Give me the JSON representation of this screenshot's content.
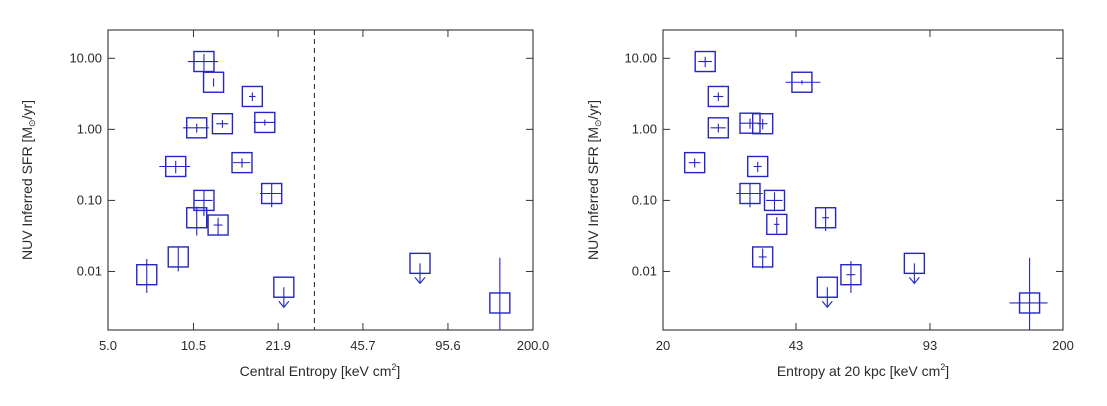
{
  "chart_data": [
    {
      "type": "scatter",
      "xscale": "log",
      "yscale": "log",
      "xlim": [
        5.0,
        200.0
      ],
      "ylim": [
        0.0015,
        25
      ],
      "xticks": [
        5.0,
        10.5,
        21.9,
        45.7,
        95.6,
        200.0
      ],
      "xtick_labels": [
        "5.0",
        "10.5",
        "21.9",
        "45.7",
        "95.6",
        "200.0"
      ],
      "yticks": [
        0.01,
        0.1,
        1,
        10
      ],
      "ytick_labels": [
        "0.01",
        "0.10",
        "1.00",
        "10.00"
      ],
      "xlabel": "Central Entropy [keV cm",
      "xlabel_sup": "2",
      "xlabel_end": "]",
      "ylabel": "NUV Inferred SFR [M",
      "ylabel_sym": "⊙",
      "ylabel_end": "/yr]",
      "vline_x": 30,
      "vline_style": "dashed",
      "color": "#2424c8",
      "points": [
        {
          "x": 11.5,
          "y": 9.0,
          "xerr": [
            1.5,
            1.5
          ],
          "yerr": [
            2.5,
            2.5
          ]
        },
        {
          "x": 12.5,
          "y": 4.6,
          "xerr": [
            0,
            0
          ],
          "yerr": [
            0.6,
            0.6
          ]
        },
        {
          "x": 17.5,
          "y": 2.9,
          "xerr": [
            0.5,
            0.5
          ],
          "yerr": [
            0.4,
            0.4
          ]
        },
        {
          "x": 10.8,
          "y": 1.05,
          "xerr": [
            1.2,
            1.2
          ],
          "yerr": [
            0.15,
            0.15
          ]
        },
        {
          "x": 13.5,
          "y": 1.2,
          "xerr": [
            0.7,
            0.7
          ],
          "yerr": [
            0.15,
            0.15
          ]
        },
        {
          "x": 19.5,
          "y": 1.25,
          "xerr": [
            1.8,
            1.8
          ],
          "yerr": [
            0.12,
            0.12
          ]
        },
        {
          "x": 9.0,
          "y": 0.3,
          "xerr": [
            1.2,
            1.2
          ],
          "yerr": [
            0.06,
            0.06
          ]
        },
        {
          "x": 16.0,
          "y": 0.34,
          "xerr": [
            1.2,
            1.2
          ],
          "yerr": [
            0.05,
            0.05
          ]
        },
        {
          "x": 20.7,
          "y": 0.125,
          "xerr": [
            2.0,
            2.0
          ],
          "yerr": [
            0.045,
            0.045
          ]
        },
        {
          "x": 11.5,
          "y": 0.1,
          "xerr": [
            0.9,
            0.9
          ],
          "yerr": [
            0.04,
            0.04
          ]
        },
        {
          "x": 10.8,
          "y": 0.057,
          "xerr": [
            0,
            0
          ],
          "yerr": [
            0.025,
            0.025
          ]
        },
        {
          "x": 13.0,
          "y": 0.045,
          "xerr": [
            0.5,
            0.5
          ],
          "yerr": [
            0.012,
            0.012
          ]
        },
        {
          "x": 9.2,
          "y": 0.016,
          "xerr": [
            0,
            0
          ],
          "yerr": [
            0.006,
            0.006
          ]
        },
        {
          "x": 7.0,
          "y": 0.009,
          "xerr": [
            0,
            0
          ],
          "yerr": [
            0.004,
            0.006
          ]
        },
        {
          "x": 23.0,
          "y": 0.006,
          "upper_limit": true
        },
        {
          "x": 75.0,
          "y": 0.013,
          "upper_limit": true
        },
        {
          "x": 150.0,
          "y": 0.0036,
          "xerr": [
            0,
            0
          ],
          "yerr": [
            0.0036,
            0.012
          ]
        }
      ]
    },
    {
      "type": "scatter",
      "xscale": "log",
      "yscale": "log",
      "xlim": [
        20,
        200
      ],
      "ylim": [
        0.0015,
        25
      ],
      "xticks": [
        20,
        43,
        93,
        200
      ],
      "xtick_labels": [
        "20",
        "43",
        "93",
        "200"
      ],
      "yticks": [
        0.01,
        0.1,
        1,
        10
      ],
      "ytick_labels": [
        "0.01",
        "0.10",
        "1.00",
        "10.00"
      ],
      "xlabel": "Entropy at 20 kpc [keV cm",
      "xlabel_sup": "2",
      "xlabel_end": "]",
      "ylabel": "NUV Inferred SFR [M",
      "ylabel_sym": "⊙",
      "ylabel_end": "/yr]",
      "color": "#2424c8",
      "points": [
        {
          "x": 25.5,
          "y": 9.0,
          "xerr": [
            1.0,
            1.0
          ],
          "yerr": [
            1.5,
            1.5
          ]
        },
        {
          "x": 27.5,
          "y": 2.9,
          "xerr": [
            0.8,
            0.8
          ],
          "yerr": [
            0.4,
            0.4
          ]
        },
        {
          "x": 44.5,
          "y": 4.6,
          "xerr": [
            4.0,
            5.0
          ],
          "yerr": [
            0.3,
            0.3
          ]
        },
        {
          "x": 27.5,
          "y": 1.05,
          "xerr": [
            1.2,
            1.2
          ],
          "yerr": [
            0.15,
            0.15
          ]
        },
        {
          "x": 33.0,
          "y": 1.22,
          "xerr": [
            1.8,
            1.8
          ],
          "yerr": [
            0.2,
            0.2
          ]
        },
        {
          "x": 35.5,
          "y": 1.2,
          "xerr": [
            1.0,
            1.0
          ],
          "yerr": [
            0.2,
            0.2
          ]
        },
        {
          "x": 24.0,
          "y": 0.34,
          "xerr": [
            0.8,
            0.8
          ],
          "yerr": [
            0.05,
            0.05
          ]
        },
        {
          "x": 34.5,
          "y": 0.3,
          "xerr": [
            0.8,
            0.8
          ],
          "yerr": [
            0.05,
            0.05
          ]
        },
        {
          "x": 33.0,
          "y": 0.125,
          "xerr": [
            2.5,
            2.5
          ],
          "yerr": [
            0.045,
            0.045
          ]
        },
        {
          "x": 38.0,
          "y": 0.1,
          "xerr": [
            1.8,
            1.8
          ],
          "yerr": [
            0.03,
            0.03
          ]
        },
        {
          "x": 38.5,
          "y": 0.046,
          "xerr": [
            0.6,
            0.6
          ],
          "yerr": [
            0.012,
            0.012
          ]
        },
        {
          "x": 51.0,
          "y": 0.057,
          "xerr": [
            1.0,
            1.0
          ],
          "yerr": [
            0.02,
            0.02
          ]
        },
        {
          "x": 35.5,
          "y": 0.016,
          "xerr": [
            0.8,
            0.8
          ],
          "yerr": [
            0.005,
            0.005
          ]
        },
        {
          "x": 59.0,
          "y": 0.009,
          "xerr": [
            1.5,
            1.5
          ],
          "yerr": [
            0.004,
            0.005
          ]
        },
        {
          "x": 51.5,
          "y": 0.006,
          "upper_limit": true
        },
        {
          "x": 85.0,
          "y": 0.013,
          "upper_limit": true
        },
        {
          "x": 165.0,
          "y": 0.0036,
          "xerr": [
            18,
            18
          ],
          "yerr": [
            0.0036,
            0.012
          ]
        }
      ]
    }
  ]
}
